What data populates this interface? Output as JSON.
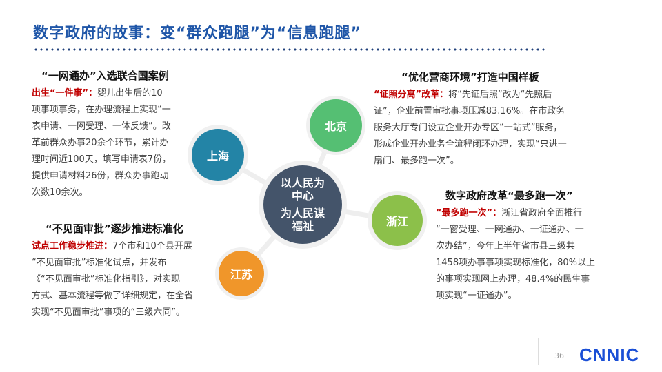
{
  "title": "数字政府的故事：变“群众跑腿”为“信息跑腿”",
  "center": {
    "line1": "以人民为",
    "line2": "中心",
    "line3": "为人民谋",
    "line4": "福祉",
    "color": "#44546a"
  },
  "nodes": {
    "shanghai": {
      "label": "上海",
      "color": "#2384a6"
    },
    "beijing": {
      "label": "北京",
      "color": "#55bf73"
    },
    "zhejiang": {
      "label": "浙江",
      "color": "#8cc04a"
    },
    "jiangsu": {
      "label": "江苏",
      "color": "#f0962a"
    }
  },
  "blocks": {
    "shanghai": {
      "heading": "“一网通办”入选联合国案例",
      "lead": "出生“一件事”：",
      "lines": [
        "婴儿出生后的10",
        "项事项事务，在办理流程上实现“一",
        "表申请、一网受理、一体反馈”。改",
        "革前群众办事20余个环节，累计办",
        "理时间近100天，填写申请表7份，",
        "提供申请材料26份，群众办事跑动",
        "次数10余次。"
      ]
    },
    "jiangsu": {
      "heading": "“不见面审批”逐步推进标准化",
      "lead": "试点工作稳步推进：",
      "lines": [
        "7个市和10个县开展",
        "“不见面审批”标准化试点，并发布",
        "《“不见面审批”标准化指引》，对实现",
        "方式、基本流程等做了详细规定，在全省",
        "实现“不见面审批”事项的“三级六同”。"
      ]
    },
    "beijing": {
      "heading": "“优化营商环境”打造中国样板",
      "lead": "“证照分离”改革：",
      "lines": [
        "将“先证后照”改为“先照后",
        "证”，企业前置审批事项压减83.16%。在市政务",
        "服务大厅专门设立企业开办专区“一站式”服务，",
        "形成企业开办业务全流程闭环办理，实现“只进一",
        "扇门、最多跑一次”。"
      ]
    },
    "zhejiang": {
      "heading": "数字政府改革“最多跑一次”",
      "lead": "“最多跑一次”：",
      "lines": [
        "浙江省政府全面推行",
        "“一窗受理、一网通办、一证通办、一",
        "次办结”，今年上半年省市县三级共",
        "1458项办事事项实现标准化，80%以上",
        "的事项实现网上办理，48.4%的民生事",
        "项实现“一证通办”。"
      ]
    }
  },
  "footer": {
    "page": "36",
    "logo": "CNNIC"
  }
}
